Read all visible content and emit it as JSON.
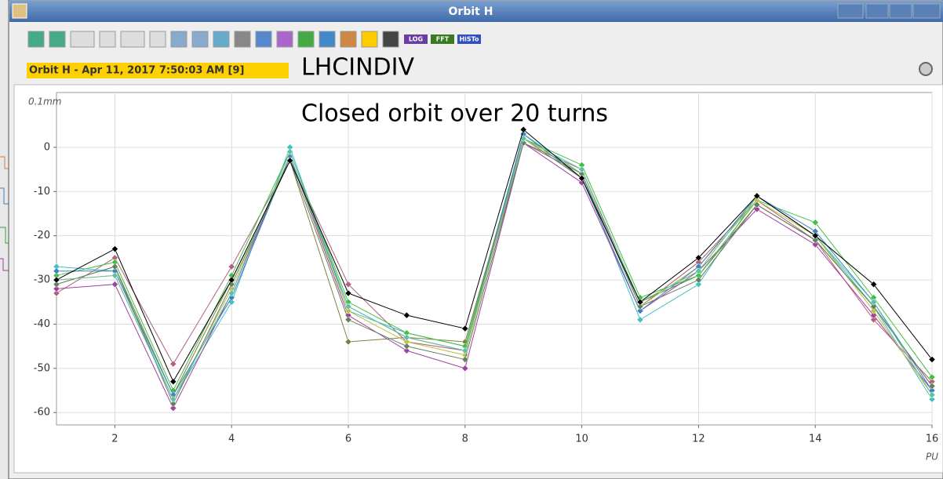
{
  "window": {
    "title": "Orbit H",
    "tag": "Orbit H - Apr 11, 2017 7:50:03 AM [9]",
    "machine": "LHCINDIV",
    "toolbar_labels": [
      "LOG",
      "FFT",
      "HiSTo"
    ]
  },
  "chart_data": {
    "type": "line",
    "annotation": "Closed orbit over 20 turns",
    "ylabel": "0.1mm",
    "xlabel": "PU",
    "x": [
      1,
      2,
      3,
      4,
      5,
      6,
      7,
      8,
      9,
      10,
      11,
      12,
      13,
      14,
      15,
      16
    ],
    "xlim": [
      1,
      16
    ],
    "xticks": [
      2,
      4,
      6,
      8,
      10,
      12,
      14,
      16
    ],
    "ylim": [
      -62.8,
      12.4
    ],
    "yticks": [
      -60,
      -50,
      -40,
      -30,
      -20,
      -10,
      0
    ],
    "grid": true,
    "series": [
      {
        "color": "#b06080",
        "values": [
          -33,
          -25,
          -49,
          -27,
          -3,
          -31,
          -44,
          -46,
          1,
          -5,
          -36,
          -26,
          -12,
          -21,
          -39,
          -53
        ]
      },
      {
        "color": "#40c0c0",
        "values": [
          -27,
          -28,
          -57,
          -35,
          0,
          -37,
          -42,
          -45,
          3,
          -6,
          -39,
          -31,
          -11,
          -20,
          -36,
          -57
        ]
      },
      {
        "color": "#808040",
        "values": [
          -31,
          -27,
          -56,
          -30,
          -3,
          -44,
          -43,
          -44,
          2,
          -7,
          -35,
          -29,
          -13,
          -21,
          -36,
          -54
        ]
      },
      {
        "color": "#a040a0",
        "values": [
          -32,
          -31,
          -59,
          -33,
          -2,
          -38,
          -46,
          -50,
          1,
          -8,
          -37,
          -28,
          -14,
          -22,
          -38,
          -55
        ]
      },
      {
        "color": "#40c040",
        "values": [
          -29,
          -26,
          -55,
          -29,
          -1,
          -35,
          -42,
          -45,
          2,
          -4,
          -34,
          -29,
          -12,
          -17,
          -34,
          -52
        ]
      },
      {
        "color": "#c0c040",
        "values": [
          -30,
          -29,
          -57,
          -32,
          -2,
          -37,
          -44,
          -47,
          2,
          -6,
          -36,
          -27,
          -12,
          -20,
          -37,
          -56
        ]
      },
      {
        "color": "#4080c0",
        "values": [
          -28,
          -28,
          -56,
          -34,
          -2,
          -36,
          -43,
          -46,
          3,
          -7,
          -37,
          -27,
          -11,
          -19,
          -35,
          -55
        ]
      },
      {
        "color": "#608060",
        "values": [
          -31,
          -27,
          -58,
          -31,
          -3,
          -39,
          -45,
          -48,
          1,
          -6,
          -36,
          -30,
          -13,
          -21,
          -36,
          -54
        ]
      },
      {
        "color": "#60c0a0",
        "values": [
          -30,
          -29,
          -57,
          -33,
          -1,
          -36,
          -43,
          -46,
          2,
          -5,
          -35,
          -28,
          -11,
          -20,
          -35,
          -56
        ]
      },
      {
        "color": "#000000",
        "values": [
          -30,
          -23,
          -53,
          -30,
          -3,
          -33,
          -38,
          -41,
          4,
          -7,
          -35,
          -25,
          -11,
          -20,
          -31,
          -48
        ]
      }
    ]
  }
}
